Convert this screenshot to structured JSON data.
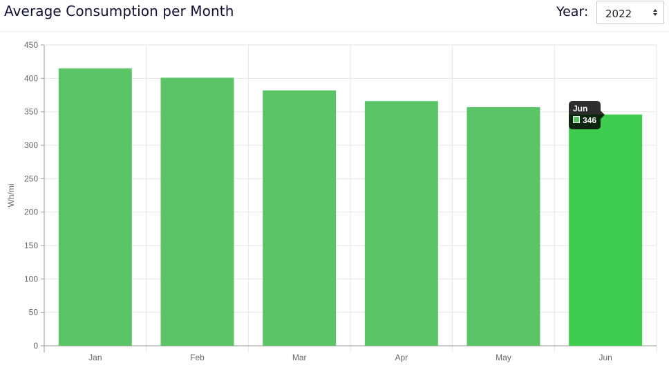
{
  "header": {
    "title": "Average Consumption per Month",
    "year_label": "Year:",
    "year_value": "2022"
  },
  "tooltip": {
    "title": "Jun",
    "value": "346",
    "swatch_color": "#5bc467"
  },
  "colors": {
    "bar": "#5bc467",
    "bar_active": "#3fcd50",
    "grid": "#e6e6e6",
    "axis": "#999999"
  },
  "chart_data": {
    "type": "bar",
    "categories": [
      "Jan",
      "Feb",
      "Mar",
      "Apr",
      "May",
      "Jun"
    ],
    "values": [
      415,
      401,
      382,
      366,
      357,
      346
    ],
    "title": "Average Consumption per Month",
    "xlabel": "",
    "ylabel": "Wh/mi",
    "ylim": [
      0,
      450
    ],
    "yticks": [
      0,
      50,
      100,
      150,
      200,
      250,
      300,
      350,
      400,
      450
    ],
    "grid": true,
    "highlighted_category": "Jun"
  }
}
